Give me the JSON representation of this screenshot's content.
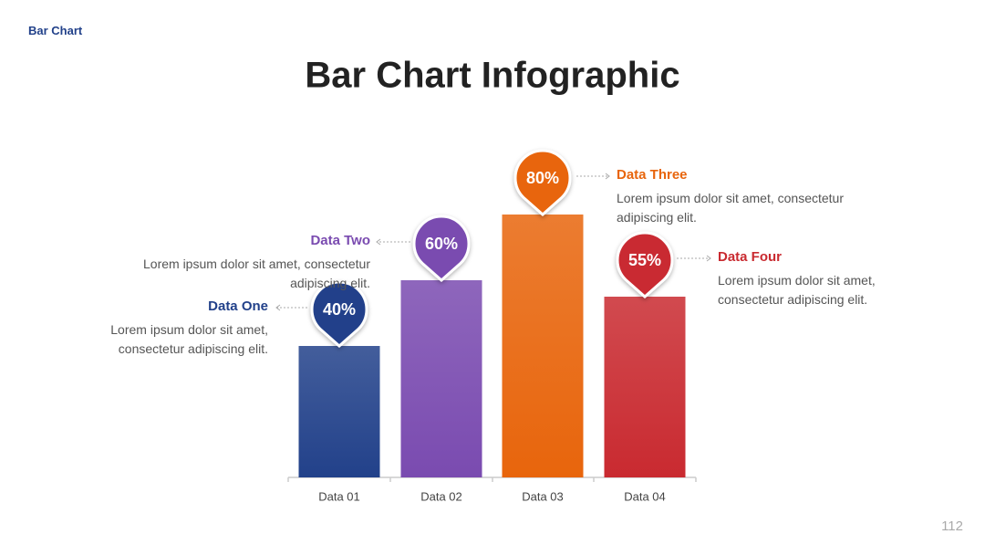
{
  "header": "Bar Chart",
  "page_number": "112",
  "chart_data": {
    "type": "bar",
    "title": "Bar Chart Infographic",
    "categories": [
      "Data 01",
      "Data 02",
      "Data 03",
      "Data 04"
    ],
    "values": [
      40,
      60,
      80,
      55
    ],
    "value_labels": [
      "40%",
      "60%",
      "80%",
      "55%"
    ],
    "colors": [
      "#22418a",
      "#7a4bb0",
      "#e8650c",
      "#c92a30"
    ],
    "callouts": [
      {
        "title": "Data One",
        "text": "Lorem ipsum dolor sit amet, consectetur adipiscing elit."
      },
      {
        "title": "Data Two",
        "text": "Lorem ipsum dolor sit amet, consectetur adipiscing elit."
      },
      {
        "title": "Data Three",
        "text": "Lorem ipsum dolor sit amet, consectetur adipiscing elit."
      },
      {
        "title": "Data Four",
        "text": "Lorem ipsum dolor sit amet, consectetur adipiscing elit."
      }
    ]
  }
}
